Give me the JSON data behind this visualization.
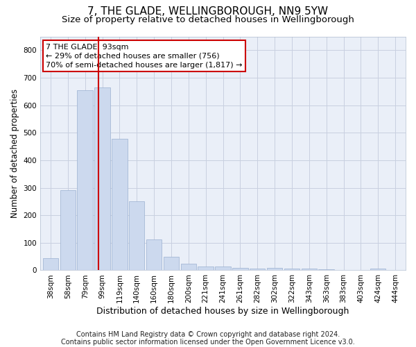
{
  "title": "7, THE GLADE, WELLINGBOROUGH, NN9 5YW",
  "subtitle": "Size of property relative to detached houses in Wellingborough",
  "xlabel": "Distribution of detached houses by size in Wellingborough",
  "ylabel": "Number of detached properties",
  "categories": [
    "38sqm",
    "58sqm",
    "79sqm",
    "99sqm",
    "119sqm",
    "140sqm",
    "160sqm",
    "180sqm",
    "200sqm",
    "221sqm",
    "241sqm",
    "261sqm",
    "282sqm",
    "302sqm",
    "322sqm",
    "343sqm",
    "363sqm",
    "383sqm",
    "403sqm",
    "424sqm",
    "444sqm"
  ],
  "values": [
    45,
    290,
    655,
    665,
    478,
    250,
    112,
    48,
    25,
    13,
    13,
    8,
    5,
    8,
    5,
    5,
    3,
    0,
    0,
    5,
    0
  ],
  "bar_color": "#ccd9ee",
  "bar_edge_color": "#9ab0d0",
  "bar_width": 0.9,
  "red_line_x": 2.78,
  "red_line_color": "#cc0000",
  "ylim": [
    0,
    850
  ],
  "yticks": [
    0,
    100,
    200,
    300,
    400,
    500,
    600,
    700,
    800
  ],
  "annotation_text": "7 THE GLADE: 93sqm\n← 29% of detached houses are smaller (756)\n70% of semi-detached houses are larger (1,817) →",
  "annotation_box_color": "#ffffff",
  "annotation_box_edge": "#cc0000",
  "bg_color": "#ffffff",
  "plot_bg_color": "#eaeff8",
  "grid_color": "#c8d0e0",
  "footer_line1": "Contains HM Land Registry data © Crown copyright and database right 2024.",
  "footer_line2": "Contains public sector information licensed under the Open Government Licence v3.0.",
  "title_fontsize": 11,
  "subtitle_fontsize": 9.5,
  "xlabel_fontsize": 9,
  "ylabel_fontsize": 8.5,
  "tick_fontsize": 7.5,
  "annotation_fontsize": 8,
  "footer_fontsize": 7
}
